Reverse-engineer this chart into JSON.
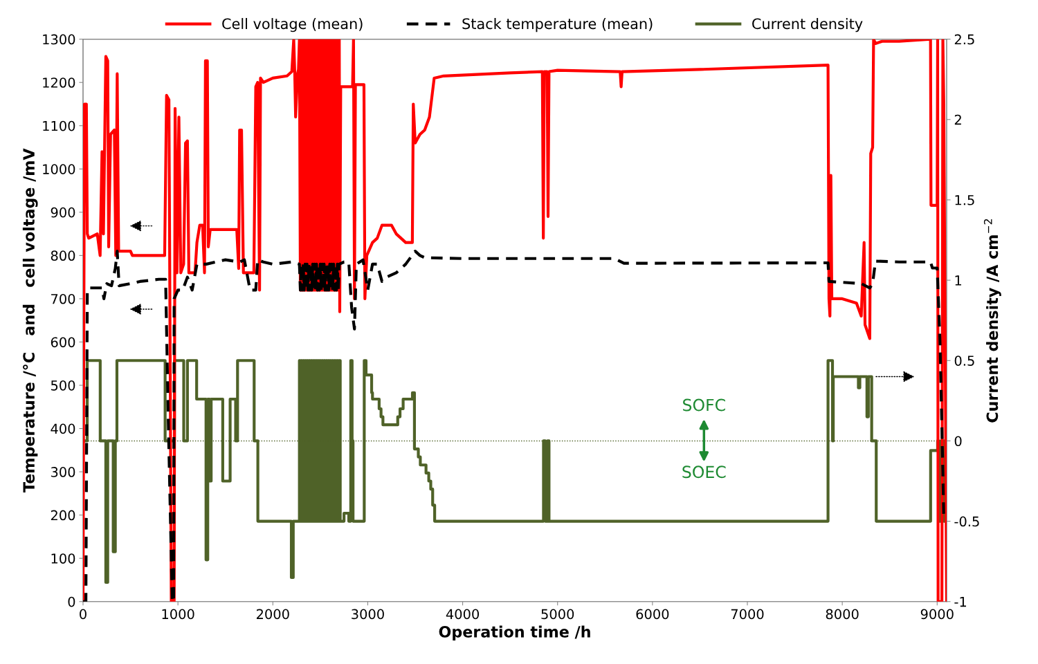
{
  "chart_data": {
    "type": "line",
    "xlabel": "Operation time /h",
    "ylabel": "Temperature /°C   and   cell voltage /mV",
    "y2label": "Current density /A cm$^{−2}$",
    "xlim": [
      0,
      9100
    ],
    "xticks": [
      0,
      1000,
      2000,
      3000,
      4000,
      5000,
      6000,
      7000,
      8000,
      9000
    ],
    "ylim": [
      0,
      1300
    ],
    "yticks": [
      0,
      100,
      200,
      300,
      400,
      500,
      600,
      700,
      800,
      900,
      1000,
      1100,
      1200,
      1300
    ],
    "y2lim": [
      -1,
      2.5
    ],
    "y2ticks": [
      -1,
      -0.5,
      0,
      0.5,
      1,
      1.5,
      2,
      2.5
    ],
    "grid": false,
    "legend": "top",
    "ref_lines": [
      {
        "axis": "y2",
        "value": 0,
        "color": "#4f6228",
        "line_style": "dotted"
      }
    ],
    "annotations": [
      "SOFC",
      "SOEC"
    ],
    "series": [
      {
        "name": "Cell voltage (mean)",
        "color": "#ff0000",
        "line_style": "solid",
        "x": [
          0,
          15,
          35,
          45,
          60,
          150,
          180,
          200,
          215,
          240,
          260,
          270,
          290,
          330,
          345,
          360,
          375,
          500,
          520,
          700,
          860,
          880,
          905,
          930,
          960,
          970,
          990,
          1010,
          1030,
          1060,
          1080,
          1100,
          1115,
          1180,
          1200,
          1230,
          1260,
          1280,
          1290,
          1310,
          1320,
          1340,
          1620,
          1640,
          1650,
          1670,
          1690,
          1800,
          1820,
          1840,
          1860,
          1870,
          1900,
          2000,
          2150,
          2200,
          2220,
          2230,
          2240,
          2260,
          2270,
          2280,
          2290,
          2300,
          2310,
          2320,
          2330,
          2340,
          2350,
          2360,
          2370,
          2380,
          2390,
          2400,
          2410,
          2420,
          2430,
          2440,
          2450,
          2460,
          2470,
          2480,
          2490,
          2500,
          2510,
          2520,
          2530,
          2540,
          2550,
          2560,
          2570,
          2580,
          2590,
          2600,
          2610,
          2620,
          2630,
          2640,
          2650,
          2660,
          2670,
          2680,
          2690,
          2700,
          2705,
          2715,
          2840,
          2850,
          2860,
          2870,
          2960,
          2970,
          2990,
          3050,
          3100,
          3150,
          3250,
          3300,
          3400,
          3470,
          3480,
          3500,
          3550,
          3600,
          3650,
          3700,
          3800,
          4500,
          4840,
          4850,
          4860,
          4890,
          4900,
          4910,
          5000,
          5660,
          5670,
          5680,
          6500,
          7850,
          7860,
          7870,
          7880,
          7890,
          8000,
          8150,
          8200,
          8230,
          8240,
          8290,
          8300,
          8320,
          8330,
          8350,
          8420,
          8600,
          8930,
          8935,
          9000,
          9005,
          9010,
          9050,
          9060,
          9070,
          9100
        ],
        "values": [
          0,
          1150,
          1150,
          850,
          840,
          850,
          800,
          1040,
          850,
          1260,
          1250,
          820,
          1080,
          1090,
          800,
          1220,
          810,
          810,
          800,
          800,
          800,
          1170,
          1160,
          0,
          0,
          1140,
          760,
          1120,
          760,
          780,
          1060,
          1065,
          760,
          760,
          830,
          870,
          870,
          760,
          1250,
          1250,
          820,
          860,
          860,
          770,
          1090,
          1090,
          760,
          760,
          1190,
          1200,
          720,
          1210,
          1200,
          1210,
          1215,
          1225,
          1300,
          1230,
          1120,
          1220,
          1230,
          1300,
          720,
          1300,
          720,
          1300,
          720,
          1300,
          720,
          1300,
          720,
          1300,
          720,
          1300,
          720,
          1300,
          720,
          1300,
          720,
          1300,
          720,
          1300,
          720,
          1300,
          720,
          1300,
          720,
          1300,
          720,
          1300,
          720,
          1300,
          720,
          1300,
          720,
          1300,
          720,
          1300,
          720,
          1300,
          720,
          1300,
          720,
          1300,
          670,
          1190,
          1190,
          1300,
          700,
          1195,
          1195,
          700,
          800,
          830,
          840,
          870,
          870,
          850,
          830,
          830,
          1150,
          1060,
          1080,
          1090,
          1120,
          1210,
          1215,
          1222,
          1225,
          840,
          1225,
          1225,
          890,
          1225,
          1228,
          1225,
          1190,
          1225,
          1230,
          1240,
          700,
          660,
          985,
          700,
          700,
          690,
          660,
          830,
          640,
          608,
          1036,
          1050,
          1300,
          1290,
          1295,
          1295,
          1300,
          916,
          916,
          1300,
          0,
          0,
          1300,
          1150,
          0
        ]
      },
      {
        "name": "Stack temperature (mean)",
        "color": "#000000",
        "line_style": "dashed",
        "x": [
          0,
          30,
          45,
          60,
          200,
          220,
          250,
          300,
          340,
          360,
          380,
          500,
          600,
          800,
          870,
          900,
          940,
          955,
          960,
          1000,
          1050,
          1100,
          1150,
          1200,
          1300,
          1500,
          1650,
          1700,
          1760,
          1820,
          1840,
          1900,
          2000,
          2200,
          2280,
          2290,
          2300,
          2310,
          2320,
          2330,
          2340,
          2350,
          2360,
          2370,
          2380,
          2390,
          2400,
          2410,
          2420,
          2430,
          2440,
          2450,
          2460,
          2470,
          2480,
          2490,
          2500,
          2510,
          2520,
          2530,
          2540,
          2550,
          2560,
          2570,
          2580,
          2590,
          2600,
          2610,
          2620,
          2630,
          2640,
          2650,
          2660,
          2670,
          2680,
          2690,
          2700,
          2750,
          2800,
          2830,
          2860,
          2880,
          2950,
          3000,
          3050,
          3100,
          3150,
          3200,
          3300,
          3400,
          3500,
          3550,
          3600,
          4000,
          5600,
          5700,
          7850,
          7860,
          8200,
          8290,
          8320,
          8350,
          8600,
          8930,
          8950,
          9000,
          9030,
          9060,
          9070
        ],
        "values": [
          0,
          0,
          720,
          725,
          725,
          700,
          735,
          730,
          770,
          810,
          730,
          735,
          740,
          745,
          745,
          400,
          0,
          0,
          700,
          720,
          720,
          750,
          720,
          780,
          780,
          790,
          785,
          790,
          720,
          720,
          790,
          785,
          780,
          785,
          780,
          720,
          780,
          720,
          780,
          720,
          780,
          720,
          780,
          720,
          780,
          720,
          780,
          720,
          780,
          720,
          780,
          720,
          780,
          720,
          780,
          720,
          780,
          720,
          780,
          720,
          780,
          720,
          780,
          720,
          780,
          720,
          780,
          720,
          780,
          720,
          780,
          720,
          780,
          720,
          780,
          720,
          780,
          785,
          785,
          680,
          630,
          780,
          790,
          720,
          780,
          780,
          740,
          750,
          760,
          780,
          810,
          800,
          795,
          793,
          793,
          782,
          783,
          740,
          735,
          725,
          735,
          787,
          785,
          785,
          771,
          771,
          600,
          300,
          189
        ]
      },
      {
        "name": "Current density",
        "type": "step",
        "axis": "y2",
        "color": "#4f6228",
        "line_style": "solid",
        "x": [
          0,
          44,
          181,
          240,
          260,
          318,
          340,
          357,
          865,
          963,
          1061,
          1100,
          1197,
          1296,
          1314,
          1334,
          1350,
          1472,
          1550,
          1608,
          1628,
          1803,
          1842,
          2195,
          2215,
          2280,
          2290,
          2300,
          2310,
          2320,
          2330,
          2340,
          2350,
          2360,
          2370,
          2380,
          2390,
          2400,
          2410,
          2420,
          2430,
          2440,
          2450,
          2460,
          2470,
          2480,
          2490,
          2500,
          2510,
          2520,
          2530,
          2540,
          2550,
          2560,
          2570,
          2580,
          2590,
          2600,
          2610,
          2620,
          2630,
          2640,
          2650,
          2660,
          2670,
          2680,
          2690,
          2700,
          2710,
          2750,
          2800,
          2821,
          2835,
          2845,
          2963,
          2982,
          3041,
          3050,
          3120,
          3140,
          3160,
          3316,
          3340,
          3373,
          3471,
          3492,
          3533,
          3554,
          3614,
          3643,
          3664,
          3684,
          3705,
          4852,
          4870,
          4895,
          4910,
          7850,
          7897,
          7905,
          8170,
          8185,
          8260,
          8275,
          8310,
          8358,
          8931,
          9005,
          9015,
          9040,
          9070,
          9100
        ],
        "values": [
          0,
          0.5,
          0,
          -0.88,
          0,
          -0.69,
          0,
          0.5,
          0,
          0.5,
          0,
          0.5,
          0.26,
          -0.74,
          0.26,
          -0.25,
          0.26,
          -0.25,
          0.26,
          0,
          0.5,
          0,
          -0.5,
          -0.85,
          -0.5,
          0.5,
          -0.5,
          0.5,
          -0.5,
          0.5,
          -0.5,
          0.5,
          -0.5,
          0.5,
          -0.5,
          0.5,
          -0.5,
          0.5,
          -0.5,
          0.5,
          -0.5,
          0.5,
          -0.5,
          0.5,
          -0.5,
          0.5,
          -0.5,
          0.5,
          -0.5,
          0.5,
          -0.5,
          0.5,
          -0.5,
          0.5,
          -0.5,
          0.5,
          -0.5,
          0.5,
          -0.5,
          0.5,
          -0.5,
          0.5,
          -0.5,
          0.5,
          -0.5,
          0.5,
          -0.5,
          0.5,
          -0.5,
          -0.45,
          -0.5,
          0.5,
          0,
          -0.5,
          0.5,
          0.41,
          0.3,
          0.26,
          0.2,
          0.15,
          0.1,
          0.15,
          0.2,
          0.26,
          0.3,
          -0.05,
          -0.1,
          -0.15,
          -0.2,
          -0.25,
          -0.3,
          -0.4,
          -0.5,
          0,
          -0.5,
          0,
          -0.5,
          0.5,
          0,
          0.4,
          0.33,
          0.4,
          0.15,
          0.4,
          0,
          -0.5,
          -0.06,
          0,
          -0.5,
          0,
          -0.5,
          -0.5
        ]
      }
    ]
  }
}
